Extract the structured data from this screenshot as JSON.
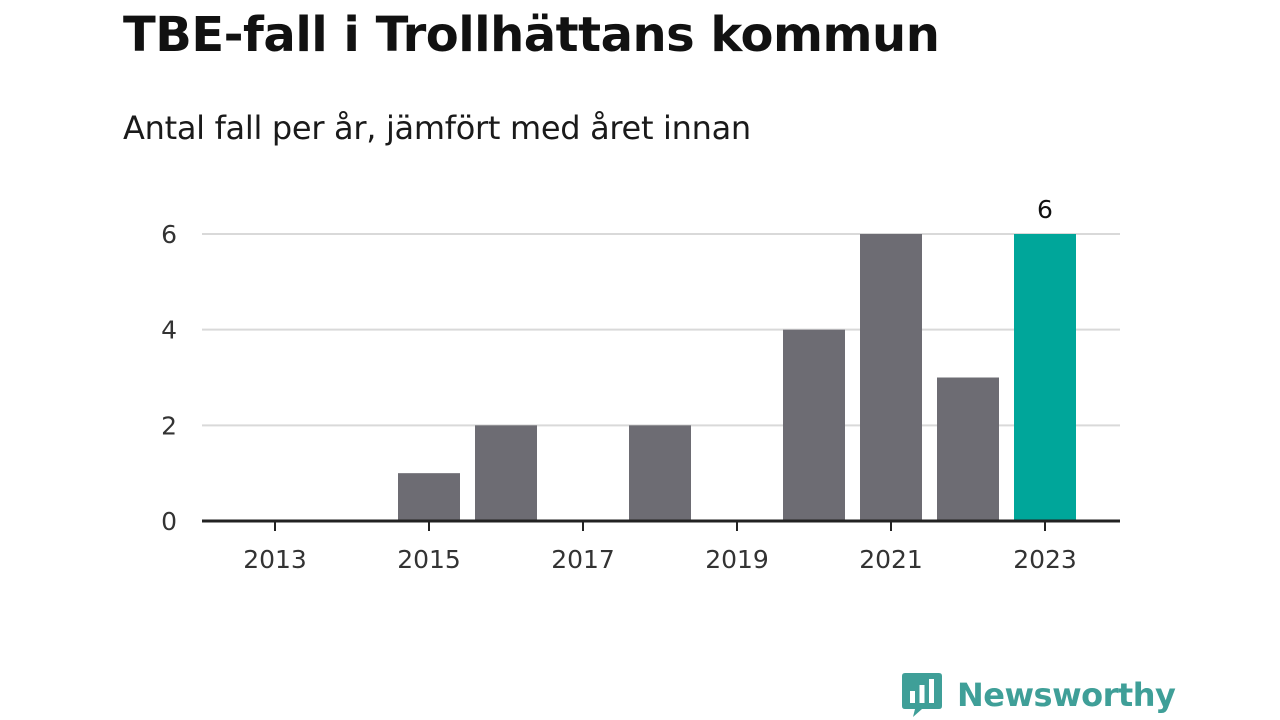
{
  "title": "TBE-fall i Trollhättans kommun",
  "subtitle": "Antal fall per år, jämfört med året innan",
  "brand": {
    "name": "Newsworthy",
    "icon": "newsworthy-bar-chart-icon",
    "color": "#3f9f98"
  },
  "colors": {
    "bar": "#6d6c73",
    "highlight": "#00a69a",
    "grid": "#d9d9d9",
    "axis": "#222222"
  },
  "chart_data": {
    "type": "bar",
    "categories": [
      "2013",
      "2014",
      "2015",
      "2016",
      "2017",
      "2018",
      "2019",
      "2020",
      "2021",
      "2022",
      "2023"
    ],
    "values": [
      0,
      0,
      1,
      2,
      0,
      2,
      0,
      4,
      6,
      3,
      6
    ],
    "x_tick_labels": [
      "2013",
      "2015",
      "2017",
      "2019",
      "2021",
      "2023"
    ],
    "y_ticks": [
      0,
      2,
      4,
      6
    ],
    "ylim": [
      0,
      6
    ],
    "highlight_category": "2023",
    "data_labels": [
      {
        "category": "2023",
        "label": "6"
      }
    ],
    "grid": true,
    "legend": "none"
  }
}
